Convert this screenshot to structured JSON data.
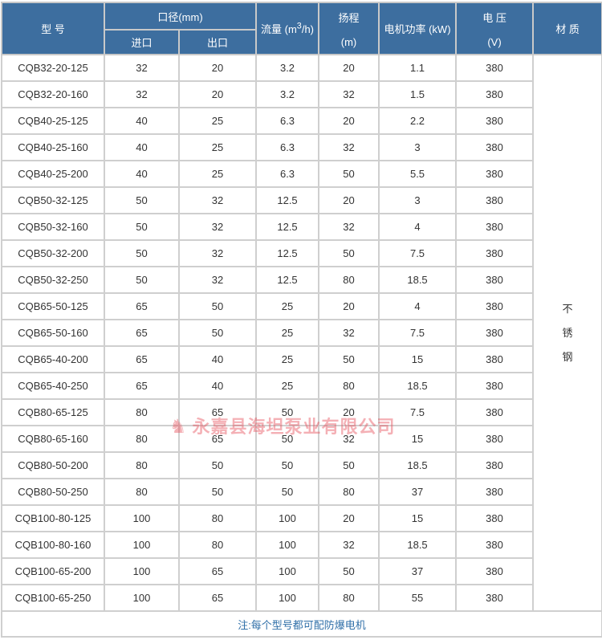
{
  "headers": {
    "model": "型 号",
    "bore": "口径(mm)",
    "inlet": "进口",
    "outlet": "出口",
    "flow": "流量 (m³/h)",
    "head": "扬程",
    "head_unit": "(m)",
    "power": "电机功率 (kW)",
    "voltage": "电 压",
    "voltage_unit": "(V)",
    "material": "材 质"
  },
  "material": [
    "不",
    "锈",
    "钢"
  ],
  "rows": [
    [
      "CQB32-20-125",
      "32",
      "20",
      "3.2",
      "20",
      "1.1",
      "380"
    ],
    [
      "CQB32-20-160",
      "32",
      "20",
      "3.2",
      "32",
      "1.5",
      "380"
    ],
    [
      "CQB40-25-125",
      "40",
      "25",
      "6.3",
      "20",
      "2.2",
      "380"
    ],
    [
      "CQB40-25-160",
      "40",
      "25",
      "6.3",
      "32",
      "3",
      "380"
    ],
    [
      "CQB40-25-200",
      "40",
      "25",
      "6.3",
      "50",
      "5.5",
      "380"
    ],
    [
      "CQB50-32-125",
      "50",
      "32",
      "12.5",
      "20",
      "3",
      "380"
    ],
    [
      "CQB50-32-160",
      "50",
      "32",
      "12.5",
      "32",
      "4",
      "380"
    ],
    [
      "CQB50-32-200",
      "50",
      "32",
      "12.5",
      "50",
      "7.5",
      "380"
    ],
    [
      "CQB50-32-250",
      "50",
      "32",
      "12.5",
      "80",
      "18.5",
      "380"
    ],
    [
      "CQB65-50-125",
      "65",
      "50",
      "25",
      "20",
      "4",
      "380"
    ],
    [
      "CQB65-50-160",
      "65",
      "50",
      "25",
      "32",
      "7.5",
      "380"
    ],
    [
      "CQB65-40-200",
      "65",
      "40",
      "25",
      "50",
      "15",
      "380"
    ],
    [
      "CQB65-40-250",
      "65",
      "40",
      "25",
      "80",
      "18.5",
      "380"
    ],
    [
      "CQB80-65-125",
      "80",
      "65",
      "50",
      "20",
      "7.5",
      "380"
    ],
    [
      "CQB80-65-160",
      "80",
      "65",
      "50",
      "32",
      "15",
      "380"
    ],
    [
      "CQB80-50-200",
      "80",
      "50",
      "50",
      "50",
      "18.5",
      "380"
    ],
    [
      "CQB80-50-250",
      "80",
      "50",
      "50",
      "80",
      "37",
      "380"
    ],
    [
      "CQB100-80-125",
      "100",
      "80",
      "100",
      "20",
      "15",
      "380"
    ],
    [
      "CQB100-80-160",
      "100",
      "80",
      "100",
      "32",
      "18.5",
      "380"
    ],
    [
      "CQB100-65-200",
      "100",
      "65",
      "100",
      "50",
      "37",
      "380"
    ],
    [
      "CQB100-65-250",
      "100",
      "65",
      "100",
      "80",
      "55",
      "380"
    ]
  ],
  "note": "注:每个型号都可配防爆电机",
  "watermark": "永嘉县海坦泵业有限公司"
}
